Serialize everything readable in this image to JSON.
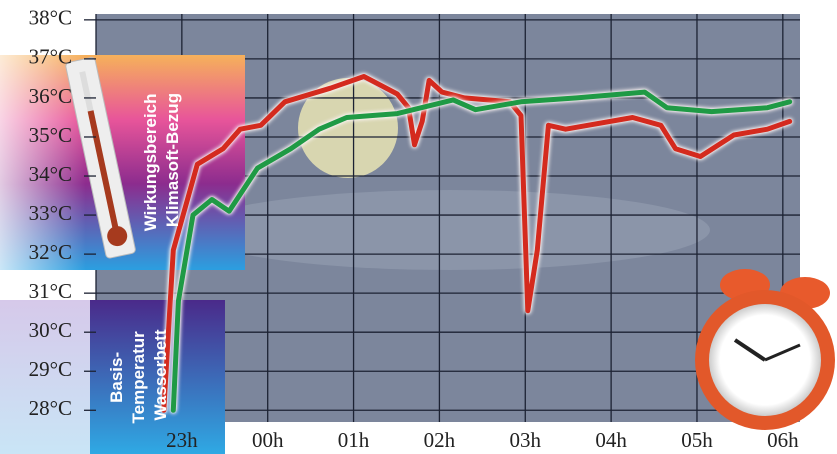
{
  "chart_data": {
    "type": "line",
    "xlim": [
      22,
      30.2
    ],
    "ylim": [
      27.7,
      38.15
    ],
    "grid": true,
    "xticks": [
      {
        "value": 23,
        "label": "23h"
      },
      {
        "value": 24,
        "label": "00h"
      },
      {
        "value": 25,
        "label": "01h"
      },
      {
        "value": 26,
        "label": "02h"
      },
      {
        "value": 27,
        "label": "03h"
      },
      {
        "value": 28,
        "label": "04h"
      },
      {
        "value": 29,
        "label": "05h"
      },
      {
        "value": 30,
        "label": "06h"
      }
    ],
    "yticks": [
      {
        "value": 28,
        "label": "28°C"
      },
      {
        "value": 29,
        "label": "29°C"
      },
      {
        "value": 30,
        "label": "30°C"
      },
      {
        "value": 31,
        "label": "31°C"
      },
      {
        "value": 32,
        "label": "32°C"
      },
      {
        "value": 33,
        "label": "33°C"
      },
      {
        "value": 34,
        "label": "34°C"
      },
      {
        "value": 35,
        "label": "35°C"
      },
      {
        "value": 36,
        "label": "36°C"
      },
      {
        "value": 37,
        "label": "37°C"
      },
      {
        "value": 38,
        "label": "38°C"
      }
    ],
    "annotations": [
      {
        "lines": [
          "Basis-",
          "Temperatur",
          "Wasserbett"
        ]
      },
      {
        "lines": [
          "Wirkungsbereich",
          "Klimasoft-Bezug"
        ]
      }
    ],
    "series": [
      {
        "color": "#d42a1e",
        "x": [
          22.79,
          22.9,
          23.18,
          23.48,
          23.68,
          23.92,
          24.2,
          24.73,
          25.12,
          25.51,
          25.64,
          25.71,
          25.8,
          25.88,
          26.03,
          26.29,
          26.82,
          26.95,
          27.03,
          27.14,
          27.27,
          27.47,
          28.25,
          28.58,
          28.75,
          29.04,
          29.43,
          29.82,
          30.08
        ],
        "values": [
          28.0,
          32.1,
          34.3,
          34.7,
          35.2,
          35.3,
          35.9,
          36.25,
          36.55,
          36.1,
          35.75,
          34.8,
          35.4,
          36.45,
          36.15,
          36.0,
          35.9,
          35.55,
          30.55,
          32.1,
          35.3,
          35.2,
          35.5,
          35.3,
          34.7,
          34.5,
          35.05,
          35.2,
          35.4
        ]
      },
      {
        "color": "#1f9a45",
        "x": [
          22.9,
          22.96,
          23.13,
          23.35,
          23.55,
          23.88,
          24.27,
          24.6,
          24.92,
          25.51,
          26.16,
          26.42,
          26.95,
          27.6,
          28.39,
          28.65,
          29.17,
          29.82,
          30.08
        ],
        "values": [
          28.0,
          30.8,
          33.0,
          33.4,
          33.1,
          34.2,
          34.7,
          35.2,
          35.5,
          35.6,
          35.95,
          35.7,
          35.9,
          36.0,
          36.15,
          35.75,
          35.65,
          35.75,
          35.9
        ]
      }
    ]
  }
}
